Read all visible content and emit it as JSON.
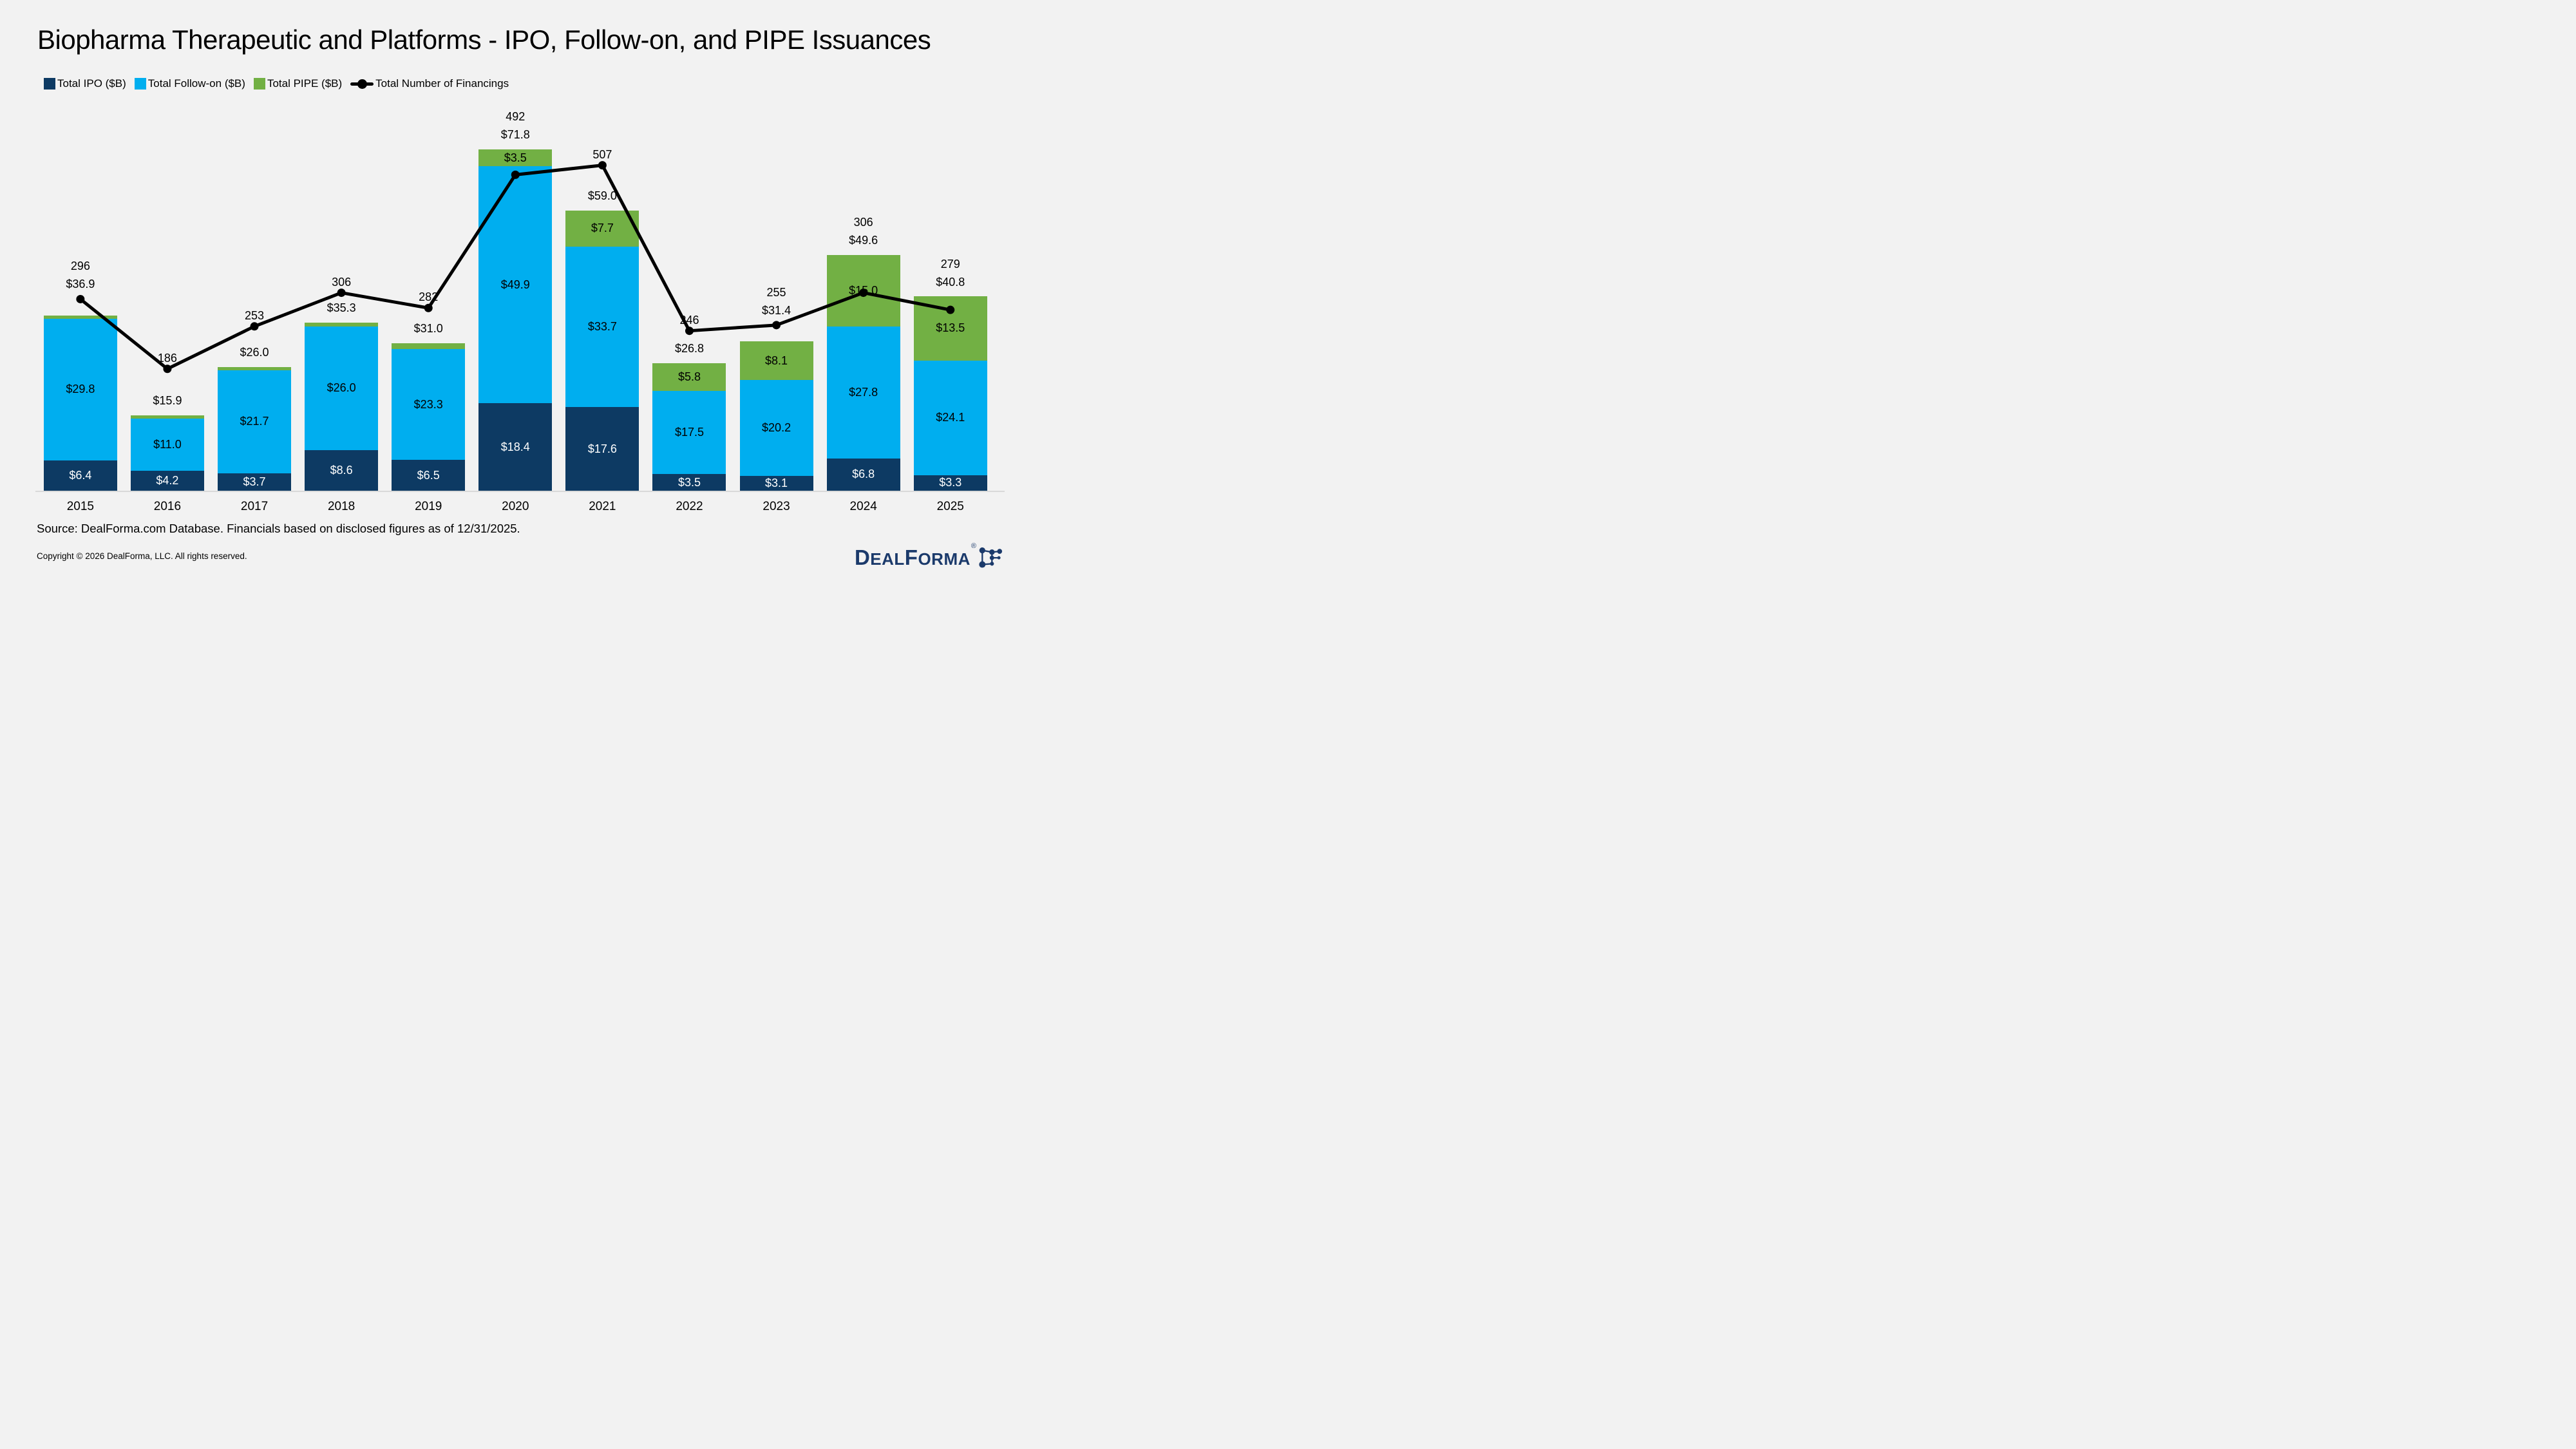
{
  "title": "Biopharma Therapeutic and Platforms - IPO, Follow-on, and PIPE Issuances",
  "legend": [
    {
      "label": "Total IPO ($B)",
      "color": "#0D3A63",
      "type": "square"
    },
    {
      "label": "Total Follow-on ($B)",
      "color": "#00AEEF",
      "type": "square"
    },
    {
      "label": "Total PIPE ($B)",
      "color": "#72B044",
      "type": "square"
    },
    {
      "label": "Total Number of Financings",
      "color": "#000000",
      "type": "line-marker"
    }
  ],
  "chart_data": {
    "type": "combo: stacked-bar + line",
    "categories": [
      "2015",
      "2016",
      "2017",
      "2018",
      "2019",
      "2020",
      "2021",
      "2022",
      "2023",
      "2024",
      "2025"
    ],
    "series": [
      {
        "name": "Total IPO ($B)",
        "key": "ipo",
        "type": "bar",
        "color": "#0D3A63",
        "label_color": "#FFFFFF",
        "values": [
          6.4,
          4.2,
          3.7,
          8.6,
          6.5,
          18.4,
          17.6,
          3.5,
          3.1,
          6.8,
          3.3
        ]
      },
      {
        "name": "Total Follow-on ($B)",
        "key": "follow-on",
        "type": "bar",
        "color": "#00AEEF",
        "label_color": "#000000",
        "values": [
          29.8,
          11.0,
          21.7,
          26.0,
          23.3,
          49.9,
          33.7,
          17.5,
          20.2,
          27.8,
          24.1
        ]
      },
      {
        "name": "Total PIPE ($B)",
        "key": "pipe",
        "type": "bar",
        "color": "#72B044",
        "label_color": "#000000",
        "values": [
          0.7,
          0.7,
          0.6,
          0.7,
          1.2,
          3.5,
          7.7,
          5.8,
          8.1,
          15.0,
          13.5
        ]
      },
      {
        "name": "Total Number of Financings",
        "key": "financings",
        "type": "line",
        "color": "#000000",
        "values": [
          296,
          186,
          253,
          306,
          282,
          492,
          507,
          246,
          255,
          306,
          279
        ]
      }
    ],
    "totals": [
      36.9,
      15.9,
      26.0,
      35.3,
      31.0,
      71.8,
      59.0,
      26.8,
      31.4,
      49.6,
      40.8
    ],
    "value_prefix": "$",
    "legend_position": "top-left",
    "gridlines": false,
    "background": "#F2F2F2",
    "axis_line_color": "#D9D9D9"
  },
  "source": "Source: DealForma.com Database. Financials based on disclosed figures as of 12/31/2025.",
  "copyright": "Copyright © 2026 DealForma, LLC. All rights reserved.",
  "logo": {
    "d": "D",
    "eal": "EAL",
    "f": "F",
    "orma": "ORMA",
    "registered": "®"
  }
}
